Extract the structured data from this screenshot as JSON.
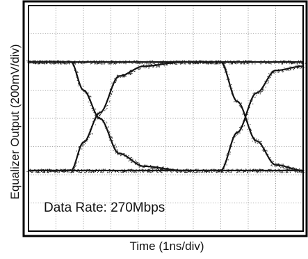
{
  "chart_data": {
    "type": "line",
    "title": "",
    "xlabel": "Time (1ns/div)",
    "ylabel": "Equalizer Output (200mV/div)",
    "annotation": "Data Rate: 270Mbps",
    "grid": true,
    "divisions": {
      "x": 10,
      "y": 8
    },
    "xlim": [
      0,
      10
    ],
    "ylim": [
      -800,
      800
    ],
    "x_unit": "ns",
    "y_unit": "mV",
    "series": [
      {
        "x": [
          0,
          1.0,
          1.55,
          2.0,
          2.6,
          3.3,
          4.2,
          5.6,
          7.0,
          7.6,
          8.3,
          9.0,
          10.0
        ],
        "y": [
          400,
          400,
          400,
          200,
          0,
          -250,
          -340,
          -370,
          -370,
          -370,
          -370,
          -370,
          -370
        ]
      },
      {
        "x": [
          0,
          1.0,
          1.55,
          2.0,
          2.6,
          3.3,
          4.2,
          5.6,
          7.0,
          7.6,
          8.3,
          9.0,
          10.0
        ],
        "y": [
          -370,
          -370,
          -370,
          -170,
          40,
          300,
          370,
          400,
          400,
          400,
          400,
          400,
          400
        ]
      },
      {
        "x": [
          0,
          1.0,
          1.55,
          2.0,
          2.6,
          3.3,
          4.2,
          5.6,
          7.0,
          7.6,
          8.3,
          9.0,
          10.0
        ],
        "y": [
          400,
          400,
          400,
          400,
          400,
          400,
          400,
          400,
          400,
          120,
          -160,
          -330,
          -370
        ]
      },
      {
        "x": [
          0,
          1.0,
          1.55,
          2.0,
          2.6,
          3.3,
          4.2,
          5.6,
          7.0,
          7.6,
          8.3,
          9.0,
          10.0
        ],
        "y": [
          -370,
          -370,
          -370,
          -370,
          -370,
          -370,
          -370,
          -370,
          -370,
          -100,
          180,
          340,
          370
        ]
      }
    ]
  }
}
